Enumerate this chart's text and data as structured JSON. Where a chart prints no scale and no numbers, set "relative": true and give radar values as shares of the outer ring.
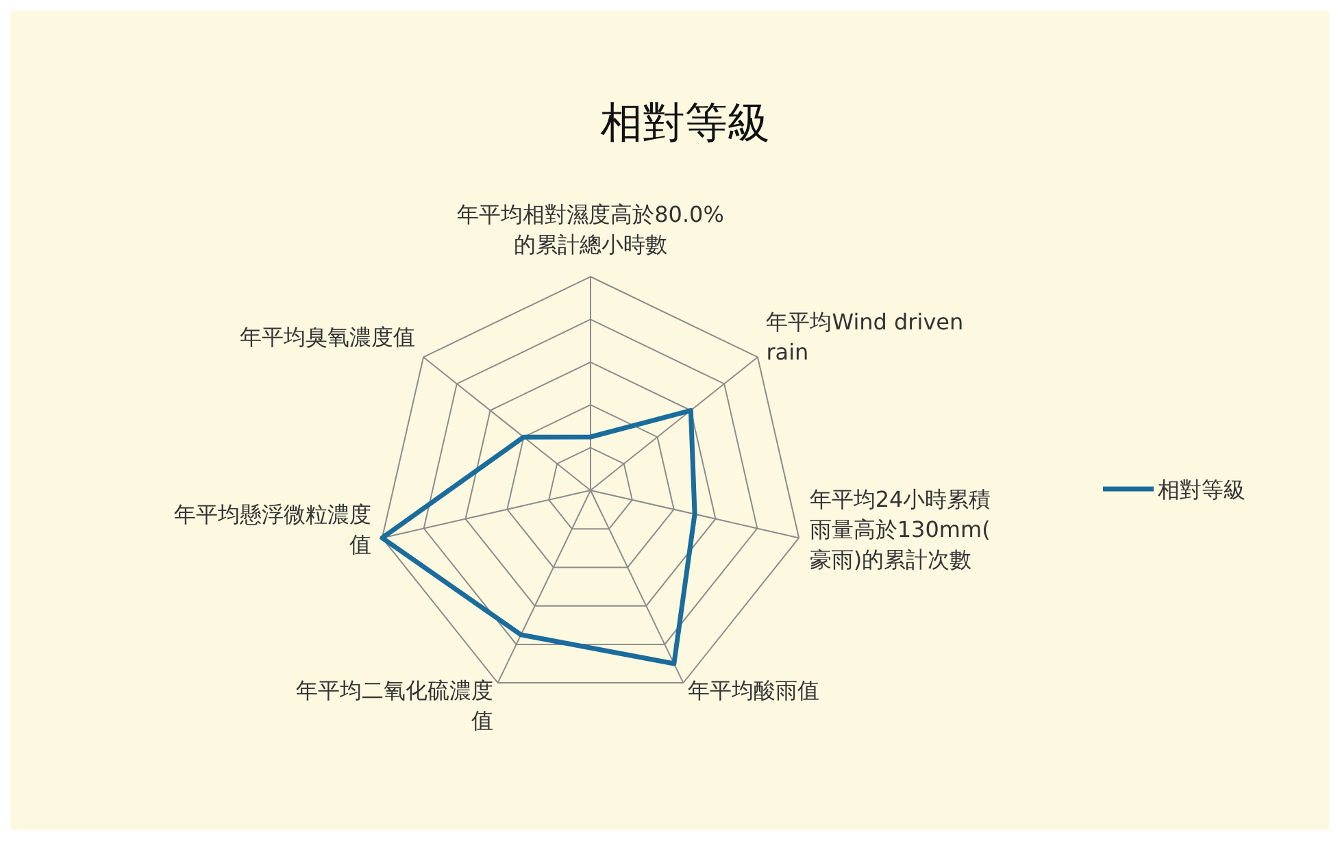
{
  "chart_data": {
    "type": "radar",
    "title": "相對等級",
    "relative": true,
    "legend": "right",
    "categories": [
      "年平均相對濕度高於80.0%的累計總小時數",
      "年平均Wind driven rain",
      "年平均24小時累積雨量高於130mm(豪雨)的累計次數",
      "年平均酸雨值",
      "年平均二氧化硫濃度值",
      "年平均懸浮微粒濃度值",
      "年平均臭氧濃度值"
    ],
    "series": [
      {
        "name": "相對等級",
        "color": "#1a6c9c",
        "values": [
          0.25,
          0.6,
          0.5,
          0.9,
          0.75,
          1,
          0.4
        ]
      }
    ]
  }
}
